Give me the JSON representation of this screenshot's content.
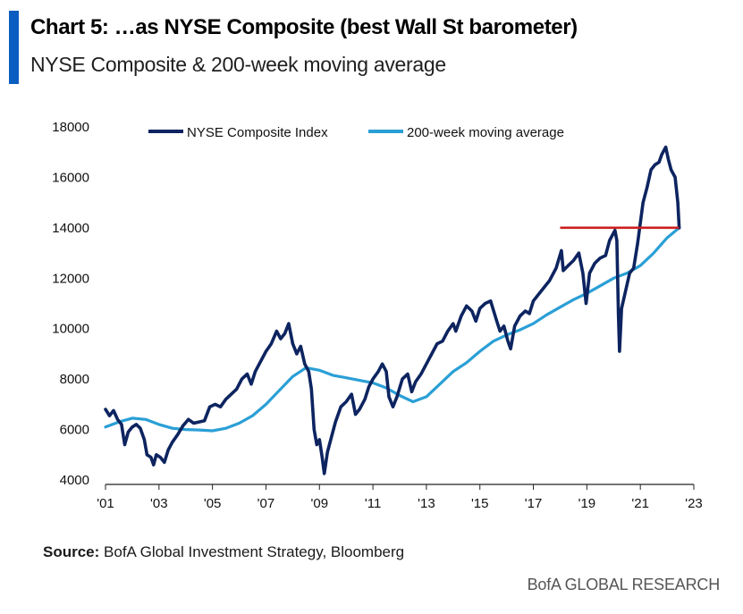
{
  "header": {
    "title": "Chart 5: …as NYSE Composite (best Wall St barometer)",
    "subtitle": "NYSE Composite & 200-week moving average"
  },
  "footer": {
    "source_label": "Source:",
    "source_text": " BofA Global Investment Strategy, Bloomberg",
    "brand": "BofA GLOBAL RESEARCH"
  },
  "colors": {
    "accent": "#0a5ec0",
    "index_line": "#0d2460",
    "moving_average_line": "#2a9fd6",
    "resistance_line": "#cc1f1f"
  },
  "chart_data": {
    "type": "line",
    "title": "",
    "xlabel": "",
    "ylabel": "",
    "xlim": [
      2001.0,
      2023.0
    ],
    "ylim": [
      4000,
      18000
    ],
    "x_ticks": [
      {
        "value": 2001,
        "label": "'01"
      },
      {
        "value": 2003,
        "label": "'03"
      },
      {
        "value": 2005,
        "label": "'05"
      },
      {
        "value": 2007,
        "label": "'07"
      },
      {
        "value": 2009,
        "label": "'09"
      },
      {
        "value": 2011,
        "label": "'11"
      },
      {
        "value": 2013,
        "label": "'13"
      },
      {
        "value": 2015,
        "label": "'15"
      },
      {
        "value": 2017,
        "label": "'17"
      },
      {
        "value": 2019,
        "label": "'19"
      },
      {
        "value": 2021,
        "label": "'21"
      },
      {
        "value": 2023,
        "label": "'23"
      }
    ],
    "y_ticks": [
      {
        "value": 4000,
        "label": "4000"
      },
      {
        "value": 6000,
        "label": "6000"
      },
      {
        "value": 8000,
        "label": "8000"
      },
      {
        "value": 10000,
        "label": "10000"
      },
      {
        "value": 12000,
        "label": "12000"
      },
      {
        "value": 14000,
        "label": "14000"
      },
      {
        "value": 16000,
        "label": "16000"
      },
      {
        "value": 18000,
        "label": "18000"
      }
    ],
    "grid": false,
    "legend_position": "top",
    "series": [
      {
        "name": "NYSE Composite Index",
        "color": "#0d2460",
        "points": [
          [
            2001.0,
            6800
          ],
          [
            2001.15,
            6550
          ],
          [
            2001.3,
            6750
          ],
          [
            2001.45,
            6400
          ],
          [
            2001.6,
            6200
          ],
          [
            2001.72,
            5400
          ],
          [
            2001.85,
            5900
          ],
          [
            2002.0,
            6100
          ],
          [
            2002.15,
            6200
          ],
          [
            2002.3,
            6050
          ],
          [
            2002.45,
            5600
          ],
          [
            2002.55,
            5000
          ],
          [
            2002.7,
            4900
          ],
          [
            2002.8,
            4600
          ],
          [
            2002.9,
            5000
          ],
          [
            2003.05,
            4900
          ],
          [
            2003.2,
            4700
          ],
          [
            2003.35,
            5200
          ],
          [
            2003.5,
            5500
          ],
          [
            2003.7,
            5800
          ],
          [
            2003.9,
            6150
          ],
          [
            2004.1,
            6400
          ],
          [
            2004.3,
            6250
          ],
          [
            2004.5,
            6300
          ],
          [
            2004.7,
            6350
          ],
          [
            2004.9,
            6900
          ],
          [
            2005.1,
            7000
          ],
          [
            2005.3,
            6900
          ],
          [
            2005.5,
            7200
          ],
          [
            2005.7,
            7400
          ],
          [
            2005.9,
            7600
          ],
          [
            2006.1,
            8000
          ],
          [
            2006.3,
            8200
          ],
          [
            2006.45,
            7800
          ],
          [
            2006.6,
            8300
          ],
          [
            2006.8,
            8700
          ],
          [
            2007.0,
            9100
          ],
          [
            2007.2,
            9400
          ],
          [
            2007.4,
            9900
          ],
          [
            2007.55,
            9600
          ],
          [
            2007.7,
            9800
          ],
          [
            2007.85,
            10200
          ],
          [
            2008.0,
            9400
          ],
          [
            2008.15,
            9000
          ],
          [
            2008.3,
            9300
          ],
          [
            2008.45,
            8600
          ],
          [
            2008.6,
            8300
          ],
          [
            2008.7,
            7600
          ],
          [
            2008.8,
            6000
          ],
          [
            2008.9,
            5400
          ],
          [
            2009.0,
            5600
          ],
          [
            2009.1,
            4900
          ],
          [
            2009.18,
            4250
          ],
          [
            2009.3,
            5100
          ],
          [
            2009.45,
            5700
          ],
          [
            2009.6,
            6300
          ],
          [
            2009.8,
            6900
          ],
          [
            2010.0,
            7100
          ],
          [
            2010.2,
            7400
          ],
          [
            2010.35,
            6600
          ],
          [
            2010.5,
            6800
          ],
          [
            2010.7,
            7200
          ],
          [
            2010.85,
            7700
          ],
          [
            2011.0,
            8000
          ],
          [
            2011.2,
            8300
          ],
          [
            2011.35,
            8600
          ],
          [
            2011.5,
            8300
          ],
          [
            2011.6,
            7300
          ],
          [
            2011.75,
            6900
          ],
          [
            2011.9,
            7300
          ],
          [
            2012.1,
            8000
          ],
          [
            2012.3,
            8200
          ],
          [
            2012.45,
            7500
          ],
          [
            2012.6,
            7900
          ],
          [
            2012.8,
            8200
          ],
          [
            2013.0,
            8600
          ],
          [
            2013.2,
            9000
          ],
          [
            2013.4,
            9400
          ],
          [
            2013.6,
            9500
          ],
          [
            2013.8,
            9900
          ],
          [
            2014.0,
            10200
          ],
          [
            2014.1,
            9900
          ],
          [
            2014.3,
            10500
          ],
          [
            2014.5,
            10900
          ],
          [
            2014.7,
            10700
          ],
          [
            2014.85,
            10300
          ],
          [
            2015.0,
            10800
          ],
          [
            2015.2,
            11000
          ],
          [
            2015.4,
            11100
          ],
          [
            2015.6,
            10400
          ],
          [
            2015.75,
            9900
          ],
          [
            2015.9,
            10100
          ],
          [
            2016.05,
            9500
          ],
          [
            2016.15,
            9200
          ],
          [
            2016.3,
            10100
          ],
          [
            2016.5,
            10500
          ],
          [
            2016.7,
            10700
          ],
          [
            2016.85,
            10600
          ],
          [
            2017.0,
            11100
          ],
          [
            2017.3,
            11500
          ],
          [
            2017.6,
            11900
          ],
          [
            2017.85,
            12400
          ],
          [
            2018.05,
            13100
          ],
          [
            2018.12,
            12300
          ],
          [
            2018.3,
            12500
          ],
          [
            2018.5,
            12700
          ],
          [
            2018.7,
            13000
          ],
          [
            2018.85,
            12200
          ],
          [
            2018.97,
            11000
          ],
          [
            2019.1,
            12200
          ],
          [
            2019.3,
            12600
          ],
          [
            2019.5,
            12800
          ],
          [
            2019.7,
            12900
          ],
          [
            2019.85,
            13500
          ],
          [
            2020.05,
            13900
          ],
          [
            2020.12,
            13500
          ],
          [
            2020.18,
            10500
          ],
          [
            2020.22,
            9100
          ],
          [
            2020.3,
            10800
          ],
          [
            2020.45,
            11500
          ],
          [
            2020.6,
            12200
          ],
          [
            2020.75,
            12400
          ],
          [
            2020.9,
            13400
          ],
          [
            2021.0,
            14200
          ],
          [
            2021.1,
            15000
          ],
          [
            2021.25,
            15600
          ],
          [
            2021.4,
            16300
          ],
          [
            2021.55,
            16500
          ],
          [
            2021.7,
            16600
          ],
          [
            2021.8,
            16900
          ],
          [
            2021.95,
            17200
          ],
          [
            2022.05,
            16700
          ],
          [
            2022.15,
            16300
          ],
          [
            2022.3,
            16000
          ],
          [
            2022.4,
            15000
          ],
          [
            2022.45,
            14000
          ]
        ]
      },
      {
        "name": "200-week moving average",
        "color": "#2a9fd6",
        "points": [
          [
            2001.0,
            6100
          ],
          [
            2001.5,
            6300
          ],
          [
            2002.0,
            6450
          ],
          [
            2002.5,
            6400
          ],
          [
            2003.0,
            6200
          ],
          [
            2003.5,
            6050
          ],
          [
            2004.0,
            6000
          ],
          [
            2004.5,
            5980
          ],
          [
            2005.0,
            5950
          ],
          [
            2005.5,
            6050
          ],
          [
            2006.0,
            6250
          ],
          [
            2006.5,
            6550
          ],
          [
            2007.0,
            7000
          ],
          [
            2007.5,
            7550
          ],
          [
            2008.0,
            8100
          ],
          [
            2008.5,
            8450
          ],
          [
            2009.0,
            8350
          ],
          [
            2009.5,
            8150
          ],
          [
            2010.0,
            8050
          ],
          [
            2010.5,
            7950
          ],
          [
            2011.0,
            7850
          ],
          [
            2011.5,
            7650
          ],
          [
            2012.0,
            7350
          ],
          [
            2012.5,
            7100
          ],
          [
            2013.0,
            7300
          ],
          [
            2013.5,
            7800
          ],
          [
            2014.0,
            8300
          ],
          [
            2014.5,
            8650
          ],
          [
            2015.0,
            9100
          ],
          [
            2015.5,
            9500
          ],
          [
            2016.0,
            9750
          ],
          [
            2016.5,
            9950
          ],
          [
            2017.0,
            10200
          ],
          [
            2017.5,
            10550
          ],
          [
            2018.0,
            10850
          ],
          [
            2018.5,
            11150
          ],
          [
            2019.0,
            11400
          ],
          [
            2019.5,
            11700
          ],
          [
            2020.0,
            12000
          ],
          [
            2020.5,
            12200
          ],
          [
            2021.0,
            12500
          ],
          [
            2021.5,
            13000
          ],
          [
            2022.0,
            13600
          ],
          [
            2022.45,
            14000
          ]
        ]
      }
    ],
    "reference_lines": [
      {
        "y": 14000,
        "x_start": 2018.0,
        "x_end": 2022.45,
        "color": "#cc1f1f"
      }
    ]
  }
}
